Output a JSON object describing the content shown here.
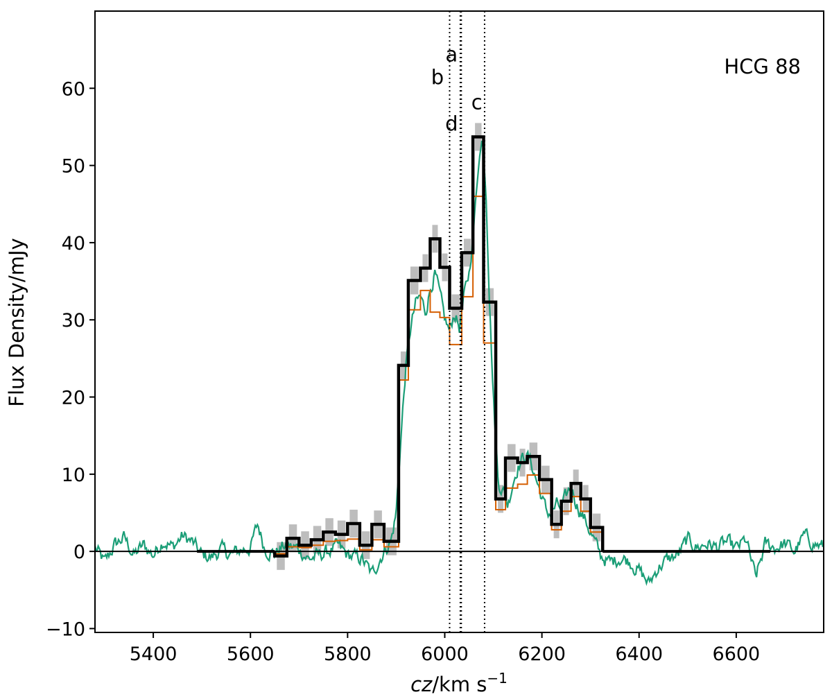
{
  "chart_data": {
    "type": "line",
    "title": "",
    "annotation": "HCG 88",
    "xlabel_parts": [
      "cz",
      "/km s",
      "−1"
    ],
    "ylabel": "Flux Density/mJy",
    "xlim": [
      5280,
      6780
    ],
    "ylim": [
      -10.5,
      70
    ],
    "xticks": [
      5400,
      5600,
      5800,
      6000,
      6200,
      6400,
      6600
    ],
    "yticks": [
      -10,
      0,
      10,
      20,
      30,
      40,
      50,
      60
    ],
    "xtick_labels": [
      "5400",
      "5600",
      "5800",
      "6000",
      "6200",
      "6400",
      "6600"
    ],
    "ytick_labels": [
      "−10",
      "0",
      "10",
      "20",
      "30",
      "40",
      "50",
      "60"
    ],
    "colors": {
      "black": "#000000",
      "orange": "#d55e00",
      "green": "#1b9e77",
      "band": "#bdbdbd"
    },
    "zero_line": 0,
    "bin_edges": [
      5650,
      5675,
      5700,
      5725,
      5750,
      5775,
      5800,
      5825,
      5850,
      5875,
      5905,
      5925,
      5950,
      5970,
      5990,
      6010,
      6035,
      6058,
      6080,
      6105,
      6125,
      6150,
      6170,
      6195,
      6220,
      6240,
      6260,
      6280,
      6300,
      6325
    ],
    "black_values": [
      -0.6,
      1.7,
      0.8,
      1.5,
      2.5,
      2.2,
      3.6,
      0.8,
      3.5,
      1.3,
      24.1,
      35.1,
      36.7,
      40.5,
      36.8,
      31.5,
      38.7,
      53.7,
      32.3,
      6.8,
      12.1,
      11.5,
      12.3,
      9.3,
      3.5,
      6.5,
      8.8,
      6.8,
      3.1
    ],
    "black_tails": [
      [
        5490,
        5650
      ],
      [
        6325,
        6670
      ]
    ],
    "band_halfwidth": 1.8,
    "orange_values": [
      -0.3,
      0.6,
      0.5,
      0.8,
      1.3,
      1.4,
      1.6,
      0.2,
      1.5,
      0.6,
      22.2,
      31.3,
      33.8,
      31.0,
      30.3,
      26.8,
      33.0,
      46.0,
      27.0,
      5.4,
      8.2,
      8.7,
      9.9,
      7.5,
      2.8,
      5.2,
      7.1,
      5.2,
      2.5
    ],
    "vlines": [
      {
        "name": "a",
        "x": 6032
      },
      {
        "name": "b",
        "x": 6010
      },
      {
        "name": "c",
        "x": 6082
      },
      {
        "name": "d",
        "x": 6034
      }
    ],
    "vline_labels": [
      {
        "name": "a",
        "x": 6014,
        "y": 63.5
      },
      {
        "name": "b",
        "x": 5985,
        "y": 60.5
      },
      {
        "name": "c",
        "x": 6066,
        "y": 57.3
      },
      {
        "name": "d",
        "x": 6014,
        "y": 54.5
      }
    ],
    "green_spectrum": {
      "x_start": 5280,
      "x_end": 6780,
      "anchors": [
        [
          5280,
          0.5
        ],
        [
          5300,
          -1.5
        ],
        [
          5320,
          0.8
        ],
        [
          5340,
          1.8
        ],
        [
          5360,
          -0.5
        ],
        [
          5380,
          0.8
        ],
        [
          5400,
          -0.5
        ],
        [
          5420,
          1.5
        ],
        [
          5440,
          0.5
        ],
        [
          5460,
          2.0
        ],
        [
          5480,
          1.2
        ],
        [
          5500,
          -0.5
        ],
        [
          5520,
          -0.8
        ],
        [
          5540,
          0.3
        ],
        [
          5560,
          -0.5
        ],
        [
          5580,
          0.2
        ],
        [
          5600,
          0.5
        ],
        [
          5615,
          3.5
        ],
        [
          5630,
          0.3
        ],
        [
          5650,
          -0.3
        ],
        [
          5670,
          0.8
        ],
        [
          5700,
          0.3
        ],
        [
          5720,
          -1.0
        ],
        [
          5750,
          -0.3
        ],
        [
          5780,
          0.6
        ],
        [
          5800,
          -0.5
        ],
        [
          5830,
          -1.0
        ],
        [
          5850,
          -3.0
        ],
        [
          5870,
          -0.5
        ],
        [
          5890,
          1.5
        ],
        [
          5900,
          5.0
        ],
        [
          5910,
          15.0
        ],
        [
          5920,
          24.0
        ],
        [
          5930,
          29.0
        ],
        [
          5940,
          32.0
        ],
        [
          5950,
          33.0
        ],
        [
          5960,
          31.0
        ],
        [
          5970,
          34.0
        ],
        [
          5980,
          36.0
        ],
        [
          5990,
          33.0
        ],
        [
          6000,
          30.0
        ],
        [
          6010,
          28.5
        ],
        [
          6020,
          31.0
        ],
        [
          6030,
          29.0
        ],
        [
          6040,
          33.0
        ],
        [
          6050,
          36.0
        ],
        [
          6060,
          42.0
        ],
        [
          6070,
          51.0
        ],
        [
          6078,
          53.5
        ],
        [
          6085,
          47.0
        ],
        [
          6092,
          33.0
        ],
        [
          6100,
          20.0
        ],
        [
          6110,
          9.0
        ],
        [
          6120,
          8.0
        ],
        [
          6130,
          6.0
        ],
        [
          6140,
          9.0
        ],
        [
          6150,
          11.0
        ],
        [
          6160,
          12.0
        ],
        [
          6170,
          12.5
        ],
        [
          6180,
          11.0
        ],
        [
          6190,
          9.0
        ],
        [
          6200,
          7.0
        ],
        [
          6210,
          5.0
        ],
        [
          6220,
          5.0
        ],
        [
          6230,
          6.0
        ],
        [
          6240,
          5.5
        ],
        [
          6250,
          7.0
        ],
        [
          6260,
          8.5
        ],
        [
          6270,
          6.5
        ],
        [
          6280,
          5.0
        ],
        [
          6290,
          4.0
        ],
        [
          6300,
          2.5
        ],
        [
          6310,
          1.0
        ],
        [
          6320,
          -0.5
        ],
        [
          6340,
          -1.5
        ],
        [
          6360,
          -0.8
        ],
        [
          6380,
          -1.2
        ],
        [
          6400,
          -2.5
        ],
        [
          6420,
          -4.2
        ],
        [
          6440,
          -2.0
        ],
        [
          6460,
          -1.0
        ],
        [
          6480,
          -0.5
        ],
        [
          6500,
          1.5
        ],
        [
          6520,
          0.5
        ],
        [
          6540,
          1.0
        ],
        [
          6560,
          0.5
        ],
        [
          6580,
          1.2
        ],
        [
          6600,
          0.3
        ],
        [
          6620,
          1.5
        ],
        [
          6640,
          -3.5
        ],
        [
          6660,
          1.0
        ],
        [
          6680,
          0.5
        ],
        [
          6700,
          1.0
        ],
        [
          6720,
          0.0
        ],
        [
          6740,
          2.0
        ],
        [
          6760,
          1.0
        ],
        [
          6780,
          0.5
        ]
      ],
      "noise_amplitude": 1.1
    }
  }
}
